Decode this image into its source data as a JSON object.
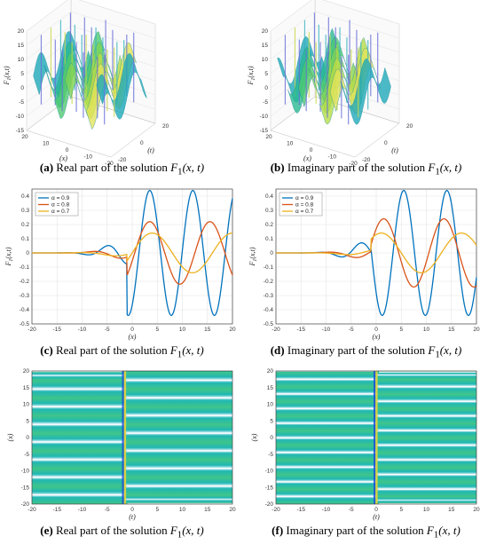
{
  "colors": {
    "blue": "#0072BD",
    "orange": "#D95319",
    "yellow": "#EDB120",
    "field_green": "#3fc58a",
    "field_teal": "#20b7b4",
    "field_blue": "#1f4fd8",
    "field_white": "#eaf7ff"
  },
  "captions": [
    {
      "id": "a",
      "label": "(a)",
      "text": "Real part of the solution",
      "func": "F",
      "sub": "1",
      "args": "(x, t)"
    },
    {
      "id": "b",
      "label": "(b)",
      "text": "Imaginary part of the solution",
      "func": "F",
      "sub": "1",
      "args": "(x, t)"
    },
    {
      "id": "c",
      "label": "(c)",
      "text": "Real part of the solution",
      "func": "F",
      "sub": "1",
      "args": "(x, t)"
    },
    {
      "id": "d",
      "label": "(d)",
      "text": "Imaginary part of the solution",
      "func": "F",
      "sub": "1",
      "args": "(x, t)"
    },
    {
      "id": "e",
      "label": "(e)",
      "text": "Real part of the solution",
      "func": "F",
      "sub": "1",
      "args": "(x, t)"
    },
    {
      "id": "f",
      "label": "(f)",
      "text": "Imaginary part of the solution",
      "func": "F",
      "sub": "1",
      "args": "(x, t)"
    }
  ],
  "chart_data": [
    {
      "id": "a",
      "type": "surface",
      "zlabel": "F1(x,t)",
      "xlabel": "(x)",
      "ylabel": "(t)",
      "zlim": [
        -15,
        20
      ],
      "zticks": [
        -15,
        -10,
        -5,
        0,
        5,
        10,
        15,
        20
      ],
      "xticks": [
        20,
        10,
        0,
        -10,
        -20
      ],
      "yticks": [
        20,
        0,
        -20
      ],
      "ztick_labels": [
        "-15",
        "-10",
        "-5",
        "0",
        "5",
        "10",
        "15",
        "20"
      ],
      "xtick_labels": [
        "20",
        "10",
        "0",
        "-10",
        "-20"
      ],
      "ytick_labels": [
        "20",
        "0",
        "-20"
      ]
    },
    {
      "id": "b",
      "type": "surface",
      "zlabel": "F1(x,t)",
      "xlabel": "(x)",
      "ylabel": "(t)",
      "zlim": [
        -15,
        20
      ],
      "zticks": [
        -15,
        -10,
        -5,
        0,
        5,
        10,
        15,
        20
      ],
      "xticks": [
        20,
        10,
        0,
        -10,
        -20
      ],
      "yticks": [
        20,
        0,
        -20
      ],
      "ztick_labels": [
        "-15",
        "-10",
        "-5",
        "0",
        "5",
        "10",
        "15",
        "20"
      ],
      "xtick_labels": [
        "20",
        "10",
        "0",
        "-10",
        "-20"
      ],
      "ytick_labels": [
        "20",
        "0",
        "-20"
      ]
    },
    {
      "id": "c",
      "type": "line",
      "xlabel": "(x)",
      "ylabel": "F1(x,t)",
      "xlim": [
        -20,
        20
      ],
      "ylim": [
        -0.5,
        0.45
      ],
      "xticks": [
        -20,
        -15,
        -10,
        -5,
        0,
        5,
        10,
        15,
        20
      ],
      "yticks": [
        -0.5,
        -0.4,
        -0.3,
        -0.2,
        -0.1,
        0,
        0.1,
        0.2,
        0.3,
        0.4
      ],
      "xtick_labels": [
        "-20",
        "-15",
        "-10",
        "-5",
        "0",
        "5",
        "10",
        "15",
        "20"
      ],
      "ytick_labels": [
        "-0.5",
        "-0.4",
        "-0.3",
        "-0.2",
        "-0.1",
        "0",
        "0.1",
        "0.2",
        "0.3",
        "0.4"
      ],
      "legend_position": "top-left",
      "series": [
        {
          "name": "α = 0.9",
          "color": "#0072BD",
          "amplitude": 0.44,
          "period": 8.6,
          "peak_x": 3.5
        },
        {
          "name": "α = 0.8",
          "color": "#D95319",
          "amplitude": 0.22,
          "period": 12.0,
          "peak_x": 3.5
        },
        {
          "name": "α = 0.7",
          "color": "#EDB120",
          "amplitude": 0.14,
          "period": 16.0,
          "peak_x": 4.0
        }
      ]
    },
    {
      "id": "d",
      "type": "line",
      "xlabel": "(x)",
      "ylabel": "F1(x,t)",
      "xlim": [
        -20,
        20
      ],
      "ylim": [
        -0.5,
        0.45
      ],
      "xticks": [
        -20,
        -15,
        -10,
        -5,
        0,
        5,
        10,
        15,
        20
      ],
      "yticks": [
        -0.5,
        -0.4,
        -0.3,
        -0.2,
        -0.1,
        0,
        0.1,
        0.2,
        0.3,
        0.4
      ],
      "xtick_labels": [
        "-20",
        "-15",
        "-10",
        "-5",
        "0",
        "5",
        "10",
        "15",
        "20"
      ],
      "ytick_labels": [
        "-0.5",
        "-0.4",
        "-0.3",
        "-0.2",
        "-0.1",
        "0",
        "0.1",
        "0.2",
        "0.3",
        "0.4"
      ],
      "legend_position": "top-left",
      "series": [
        {
          "name": "α = 0.9",
          "color": "#0072BD",
          "amplitude": 0.44,
          "period": 8.6,
          "peak_x": 5.5
        },
        {
          "name": "α = 0.8",
          "color": "#D95319",
          "amplitude": 0.24,
          "period": 12.0,
          "peak_x": 1.5
        },
        {
          "name": "α = 0.7",
          "color": "#EDB120",
          "amplitude": 0.14,
          "period": 16.0,
          "peak_x": 1.0
        }
      ]
    },
    {
      "id": "e",
      "type": "heatmap",
      "xlabel": "(t)",
      "ylabel": "(x)",
      "xlim": [
        -20,
        20
      ],
      "ylim": [
        -20,
        20
      ],
      "xticks": [
        -20,
        -15,
        -10,
        -5,
        0,
        5,
        10,
        15,
        20
      ],
      "yticks": [
        -20,
        -15,
        -10,
        -5,
        0,
        5,
        10,
        15,
        20
      ],
      "xtick_labels": [
        "-20",
        "-15",
        "-10",
        "-5",
        "0",
        "5",
        "10",
        "15",
        "20"
      ],
      "ytick_labels": [
        "-20",
        "-15",
        "-10",
        "-5",
        "0",
        "5",
        "10",
        "15",
        "20"
      ],
      "band_period": 5.3,
      "discontinuity_x": -1.5
    },
    {
      "id": "f",
      "type": "heatmap",
      "xlabel": "(t)",
      "ylabel": "(x)",
      "xlim": [
        -20,
        20
      ],
      "ylim": [
        -20,
        20
      ],
      "xticks": [
        -20,
        -15,
        -10,
        -5,
        0,
        5,
        10,
        15,
        20
      ],
      "yticks": [
        -20,
        -15,
        -10,
        -5,
        0,
        5,
        10,
        15,
        20
      ],
      "xtick_labels": [
        "-20",
        "-15",
        "-10",
        "-5",
        "0",
        "5",
        "10",
        "15",
        "20"
      ],
      "ytick_labels": [
        "-20",
        "-15",
        "-10",
        "-5",
        "0",
        "5",
        "10",
        "15",
        "20"
      ],
      "band_period": 4.4,
      "discontinuity_x": 0.0
    }
  ]
}
